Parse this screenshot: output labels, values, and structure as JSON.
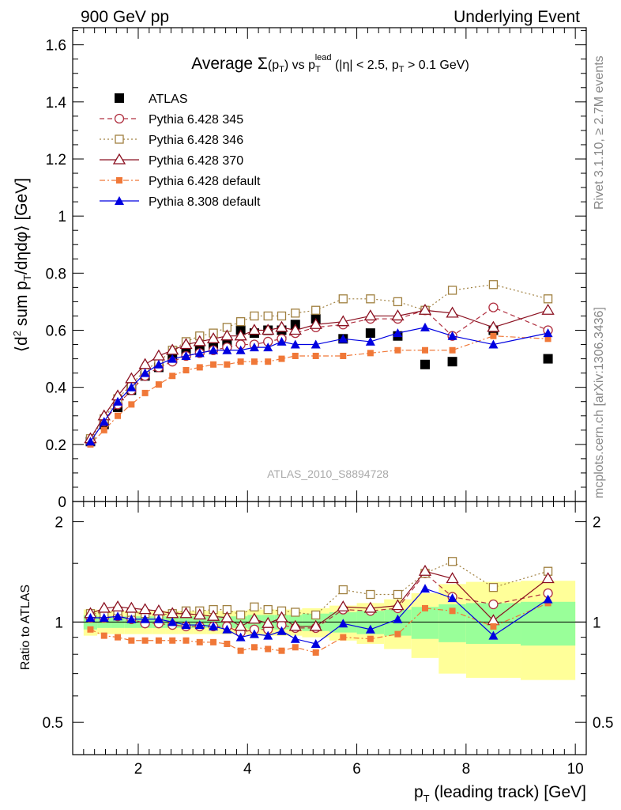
{
  "header": {
    "left": "900 GeV pp",
    "right": "Underlying Event"
  },
  "side_labels": {
    "rivet": "Rivet 3.1.10, ≥ 2.7M events",
    "mcplots": "mcplots.cern.ch [arXiv:1306.3436]"
  },
  "chart_data": [
    {
      "type": "scatter",
      "title_parts": {
        "a": "Average ",
        "sigma": "Σ",
        "b": "(p",
        "b_sub": "T",
        "c": ") vs p",
        "c_sub": "T",
        "c_sup": "lead",
        "d": " (|η| < 2.5, p",
        "d_sub": "T",
        "e": " > 0.1 GeV)"
      },
      "ylabel_parts": {
        "a": "⟨d",
        "a_sup": "2",
        "b": " sum p",
        "b_sub": "T",
        "c": "/dηdφ⟩ [GeV]"
      },
      "watermark": "ATLAS_2010_S8894728",
      "xlim": [
        0.8,
        10.2
      ],
      "ylim": [
        0,
        1.66
      ],
      "y_ticks": [
        "0",
        "0.2",
        "0.4",
        "0.6",
        "0.8",
        "1",
        "1.2",
        "1.4",
        "1.6"
      ],
      "x": [
        1.125,
        1.375,
        1.625,
        1.875,
        2.125,
        2.375,
        2.625,
        2.875,
        3.125,
        3.375,
        3.625,
        3.875,
        4.125,
        4.375,
        4.625,
        4.875,
        5.25,
        5.75,
        6.25,
        6.75,
        7.25,
        7.75,
        8.5,
        9.5
      ],
      "series": [
        {
          "name": "ATLAS",
          "color": "#000000",
          "marker": "square-filled",
          "line": "none",
          "values": [
            0.21,
            0.27,
            0.33,
            0.39,
            0.44,
            0.47,
            0.5,
            0.52,
            0.54,
            0.55,
            0.56,
            0.6,
            0.59,
            0.6,
            0.6,
            0.62,
            0.64,
            0.57,
            0.59,
            0.58,
            0.48,
            0.49,
            0.6,
            0.5
          ]
        },
        {
          "name": "Pythia 6.428 345",
          "color": "#b03040",
          "marker": "circle-open",
          "line": "dashed",
          "values": [
            0.21,
            0.28,
            0.34,
            0.39,
            0.44,
            0.47,
            0.49,
            0.51,
            0.52,
            0.53,
            0.54,
            0.55,
            0.55,
            0.56,
            0.57,
            0.59,
            0.61,
            0.62,
            0.64,
            0.64,
            0.67,
            0.58,
            0.68,
            0.6
          ]
        },
        {
          "name": "Pythia 6.428 346",
          "color": "#a08040",
          "marker": "square-open",
          "line": "dotted",
          "values": [
            0.22,
            0.29,
            0.36,
            0.41,
            0.46,
            0.49,
            0.53,
            0.56,
            0.58,
            0.59,
            0.61,
            0.63,
            0.65,
            0.65,
            0.65,
            0.66,
            0.67,
            0.71,
            0.71,
            0.7,
            0.67,
            0.74,
            0.76,
            0.71
          ]
        },
        {
          "name": "Pythia 6.428 370",
          "color": "#8b1020",
          "marker": "triangle-open",
          "line": "solid",
          "values": [
            0.22,
            0.3,
            0.37,
            0.43,
            0.48,
            0.51,
            0.53,
            0.55,
            0.56,
            0.57,
            0.58,
            0.58,
            0.6,
            0.6,
            0.61,
            0.6,
            0.62,
            0.63,
            0.65,
            0.65,
            0.67,
            0.66,
            0.61,
            0.67
          ]
        },
        {
          "name": "Pythia 6.428 default",
          "color": "#f07838",
          "marker": "square-filled-small",
          "line": "dashdot",
          "values": [
            0.2,
            0.25,
            0.3,
            0.34,
            0.38,
            0.41,
            0.44,
            0.46,
            0.47,
            0.48,
            0.48,
            0.49,
            0.49,
            0.49,
            0.5,
            0.51,
            0.51,
            0.51,
            0.52,
            0.53,
            0.53,
            0.53,
            0.58,
            0.57
          ]
        },
        {
          "name": "Pythia 8.308 default",
          "color": "#0000e0",
          "marker": "triangle-filled",
          "line": "solid",
          "values": [
            0.21,
            0.28,
            0.35,
            0.4,
            0.45,
            0.48,
            0.5,
            0.51,
            0.52,
            0.53,
            0.53,
            0.53,
            0.54,
            0.54,
            0.56,
            0.55,
            0.55,
            0.57,
            0.56,
            0.59,
            0.61,
            0.58,
            0.55,
            0.59
          ]
        }
      ]
    },
    {
      "type": "scatter",
      "ylabel": "Ratio to ATLAS",
      "xlabel_parts": {
        "a": "p",
        "a_sub": "T",
        "b": " (leading track) [GeV]"
      },
      "xlim": [
        0.8,
        10.2
      ],
      "ylim": [
        0.4,
        2.3
      ],
      "log_y": true,
      "x_ticks": [
        "2",
        "4",
        "6",
        "8",
        "10"
      ],
      "y_ticks": [
        "0.5",
        "1",
        "2"
      ],
      "bands": {
        "bin_edges": [
          1.0,
          1.25,
          1.5,
          1.75,
          2.0,
          2.25,
          2.5,
          2.75,
          3.0,
          3.25,
          3.5,
          3.75,
          4.0,
          4.25,
          4.5,
          4.75,
          5.0,
          5.5,
          6.0,
          6.5,
          7.0,
          7.5,
          8.0,
          9.0,
          10.0
        ],
        "outer_color": "#ffff99",
        "inner_color": "#99ff99",
        "outer": [
          0.09,
          0.08,
          0.08,
          0.08,
          0.08,
          0.08,
          0.08,
          0.08,
          0.08,
          0.08,
          0.08,
          0.08,
          0.09,
          0.09,
          0.09,
          0.09,
          0.1,
          0.12,
          0.14,
          0.17,
          0.22,
          0.3,
          0.32,
          0.33
        ],
        "inner": [
          0.05,
          0.04,
          0.04,
          0.04,
          0.04,
          0.04,
          0.04,
          0.04,
          0.04,
          0.04,
          0.04,
          0.04,
          0.05,
          0.05,
          0.05,
          0.05,
          0.06,
          0.07,
          0.08,
          0.09,
          0.11,
          0.13,
          0.14,
          0.15
        ]
      },
      "series_ratios": [
        [
          1.03,
          1.03,
          1.04,
          1.02,
          0.99,
          0.99,
          0.98,
          0.97,
          0.97,
          0.97,
          0.97,
          0.93,
          0.95,
          0.95,
          0.98,
          0.96,
          0.96,
          1.09,
          1.08,
          1.1,
          1.4,
          1.19,
          1.13,
          1.22
        ],
        [
          1.06,
          1.06,
          1.08,
          1.07,
          1.06,
          1.05,
          1.06,
          1.08,
          1.08,
          1.09,
          1.09,
          1.05,
          1.11,
          1.09,
          1.08,
          1.07,
          1.05,
          1.25,
          1.21,
          1.21,
          1.4,
          1.52,
          1.27,
          1.42
        ],
        [
          1.06,
          1.1,
          1.11,
          1.1,
          1.09,
          1.08,
          1.06,
          1.06,
          1.05,
          1.04,
          1.03,
          0.97,
          1.02,
          0.99,
          1.03,
          0.97,
          0.97,
          1.11,
          1.1,
          1.12,
          1.42,
          1.35,
          1.01,
          1.35
        ],
        [
          0.95,
          0.91,
          0.9,
          0.88,
          0.88,
          0.88,
          0.88,
          0.88,
          0.87,
          0.87,
          0.86,
          0.82,
          0.84,
          0.83,
          0.82,
          0.84,
          0.81,
          0.9,
          0.89,
          0.92,
          1.1,
          1.08,
          0.97,
          1.14
        ],
        [
          1.03,
          1.03,
          1.04,
          1.02,
          1.02,
          1.02,
          1.0,
          0.98,
          0.98,
          0.97,
          0.95,
          0.9,
          0.92,
          0.91,
          0.94,
          0.89,
          0.86,
          0.99,
          0.95,
          1.02,
          1.26,
          1.18,
          0.91,
          1.17
        ]
      ]
    }
  ]
}
